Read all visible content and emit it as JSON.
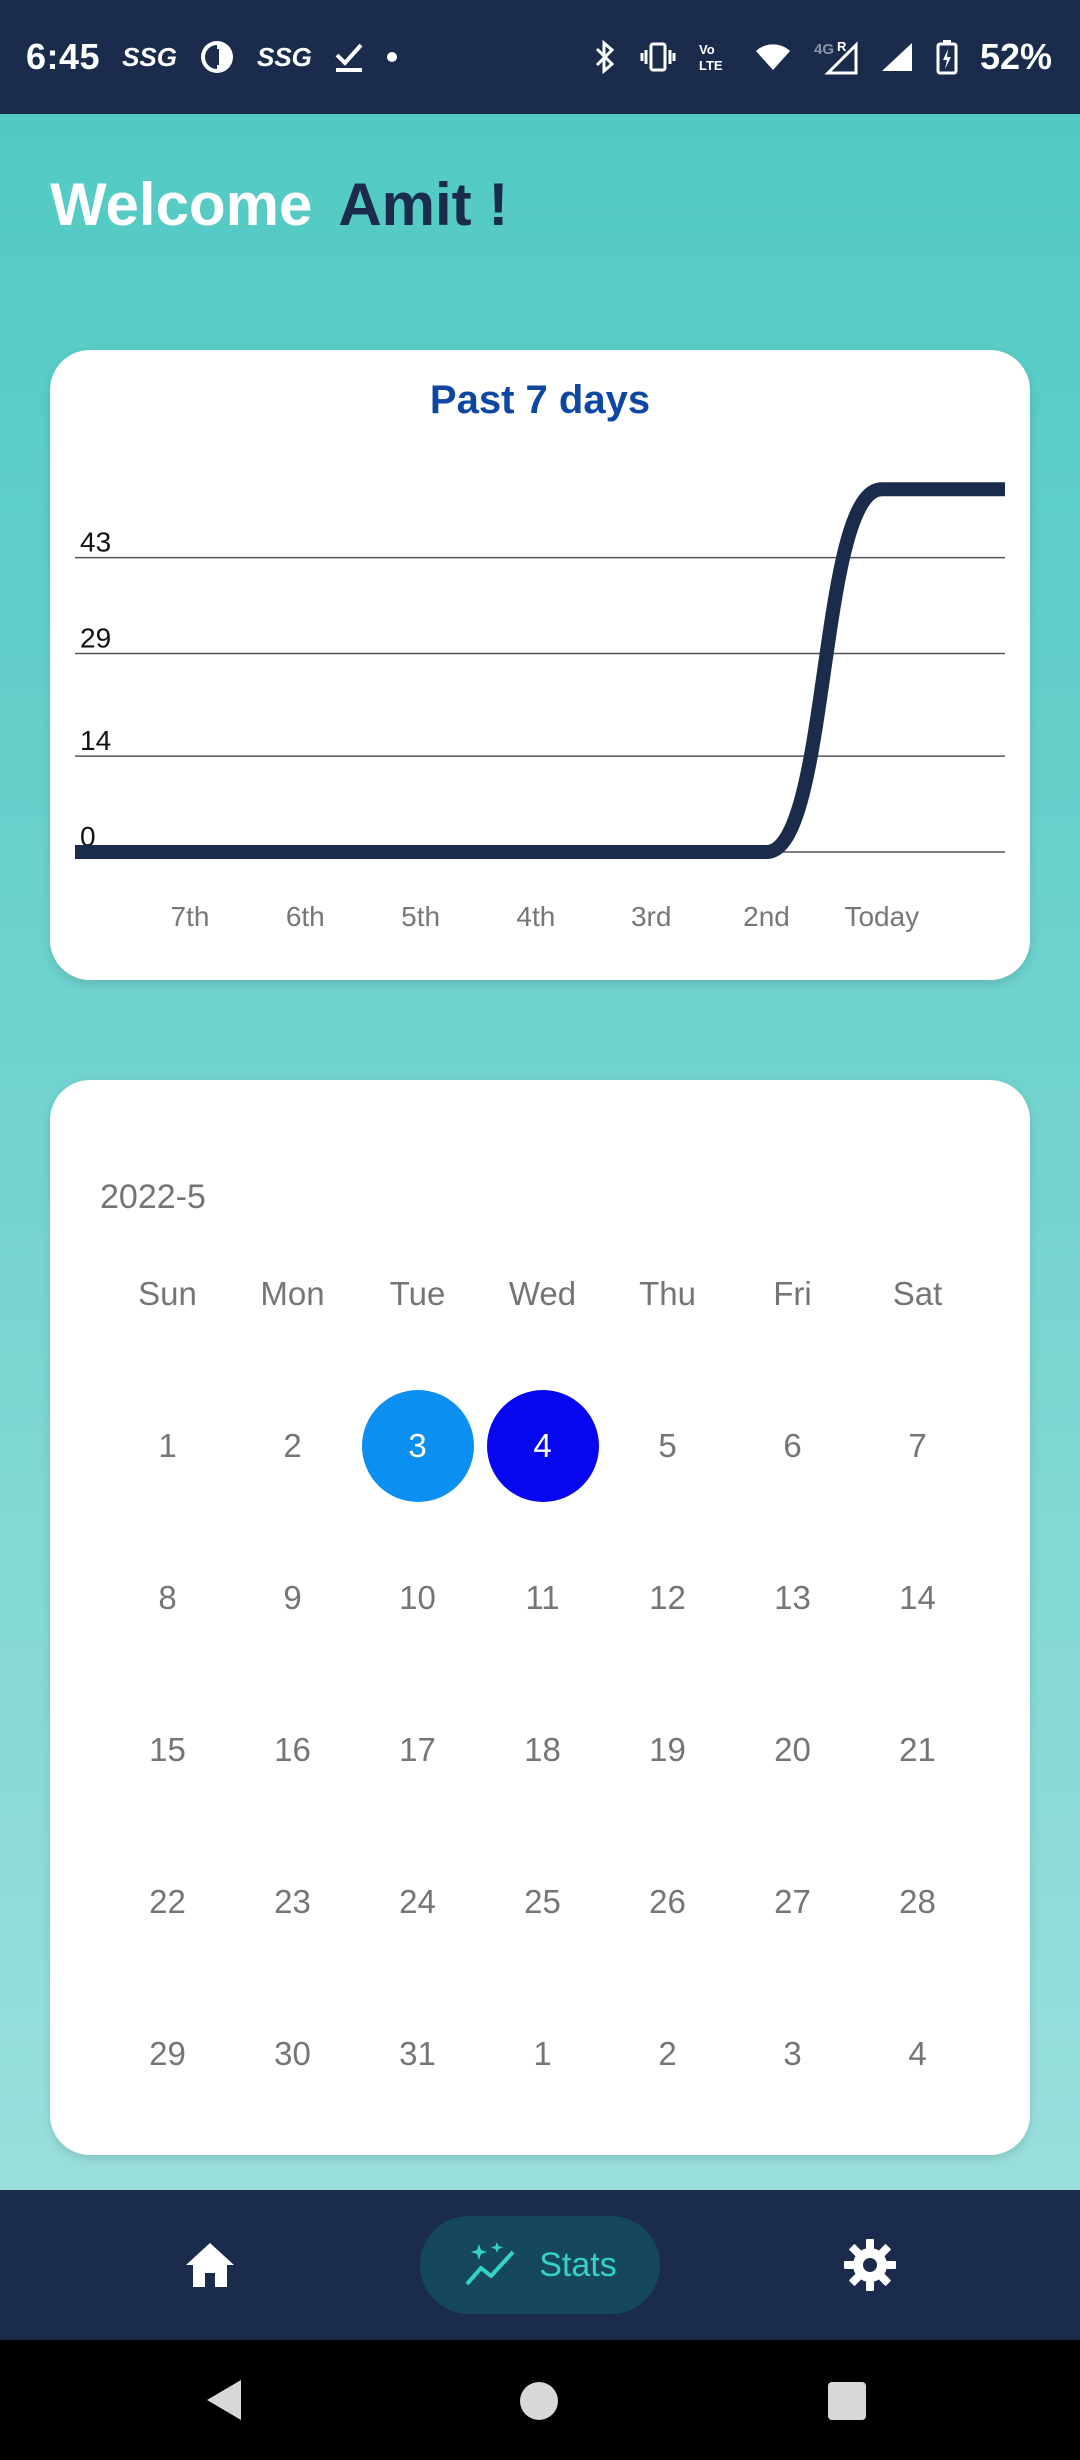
{
  "status_bar": {
    "time": "6:45",
    "left_icons": [
      "ssg-icon",
      "dollar-circle-icon",
      "ssg-icon",
      "download-done-icon",
      "dot-icon"
    ],
    "ssg_text": "SSG",
    "right_icons": [
      "bluetooth-icon",
      "vibrate-icon",
      "volte-icon",
      "wifi-icon",
      "signal-4g-icon",
      "signal-icon",
      "battery-charging-icon"
    ],
    "battery": "52%"
  },
  "welcome": {
    "greeting": "Welcome",
    "name": "Amit !"
  },
  "colors": {
    "header_bg": "#1a2b4c",
    "accent_title": "#0d47a1",
    "line": "#1a2b4c",
    "selected_day_1": "#0b8ff0",
    "selected_day_2": "#0606f0",
    "nav_active_bg": "#15485a",
    "nav_active_text": "#34d3c1"
  },
  "chart_data": {
    "type": "line",
    "title": "Past 7 days",
    "categories": [
      "7th",
      "6th",
      "5th",
      "4th",
      "3rd",
      "2nd",
      "Today"
    ],
    "yticks": [
      0,
      14,
      29,
      43
    ],
    "values": [
      0,
      0,
      0,
      0,
      0,
      0,
      53
    ],
    "ylim": [
      0,
      58
    ],
    "grid": true,
    "smooth": true
  },
  "calendar": {
    "month": "2022-5",
    "weekdays": [
      "Sun",
      "Mon",
      "Tue",
      "Wed",
      "Thu",
      "Fri",
      "Sat"
    ],
    "weeks": [
      [
        "1",
        "2",
        "3",
        "4",
        "5",
        "6",
        "7"
      ],
      [
        "8",
        "9",
        "10",
        "11",
        "12",
        "13",
        "14"
      ],
      [
        "15",
        "16",
        "17",
        "18",
        "19",
        "20",
        "21"
      ],
      [
        "22",
        "23",
        "24",
        "25",
        "26",
        "27",
        "28"
      ],
      [
        "29",
        "30",
        "31",
        "1",
        "2",
        "3",
        "4"
      ]
    ],
    "selected": [
      "3",
      "4"
    ]
  },
  "bottom_nav": {
    "items": [
      {
        "icon": "home-icon",
        "label": "",
        "active": false
      },
      {
        "icon": "stats-icon",
        "label": "Stats",
        "active": true
      },
      {
        "icon": "gear-icon",
        "label": "",
        "active": false
      }
    ]
  }
}
